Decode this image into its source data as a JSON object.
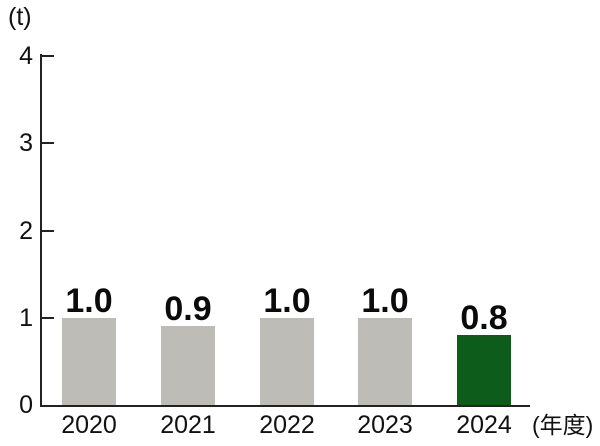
{
  "chart": {
    "unit_label": "(t)",
    "x_axis_suffix": "(年度)"
  },
  "chart_data": {
    "type": "bar",
    "title": "",
    "unit": "t",
    "y_axis_label": "(t)",
    "x_axis_label": "(年度)",
    "categories": [
      "2020",
      "2021",
      "2022",
      "2023",
      "2024"
    ],
    "values": [
      1.0,
      0.9,
      1.0,
      1.0,
      0.8
    ],
    "value_labels": [
      "1.0",
      "0.9",
      "1.0",
      "1.0",
      "0.8"
    ],
    "y_ticks": [
      0,
      1,
      2,
      3,
      4
    ],
    "ylim": [
      0,
      4
    ],
    "grid": false,
    "legend": null,
    "colors": {
      "bar_default": "#bebcb6",
      "bar_highlight": "#0d5c1c",
      "text": "#111111",
      "axis": "#222222"
    },
    "bar_colors": [
      "#bebcb6",
      "#bebcb6",
      "#bebcb6",
      "#bebcb6",
      "#0d5c1c"
    ]
  }
}
